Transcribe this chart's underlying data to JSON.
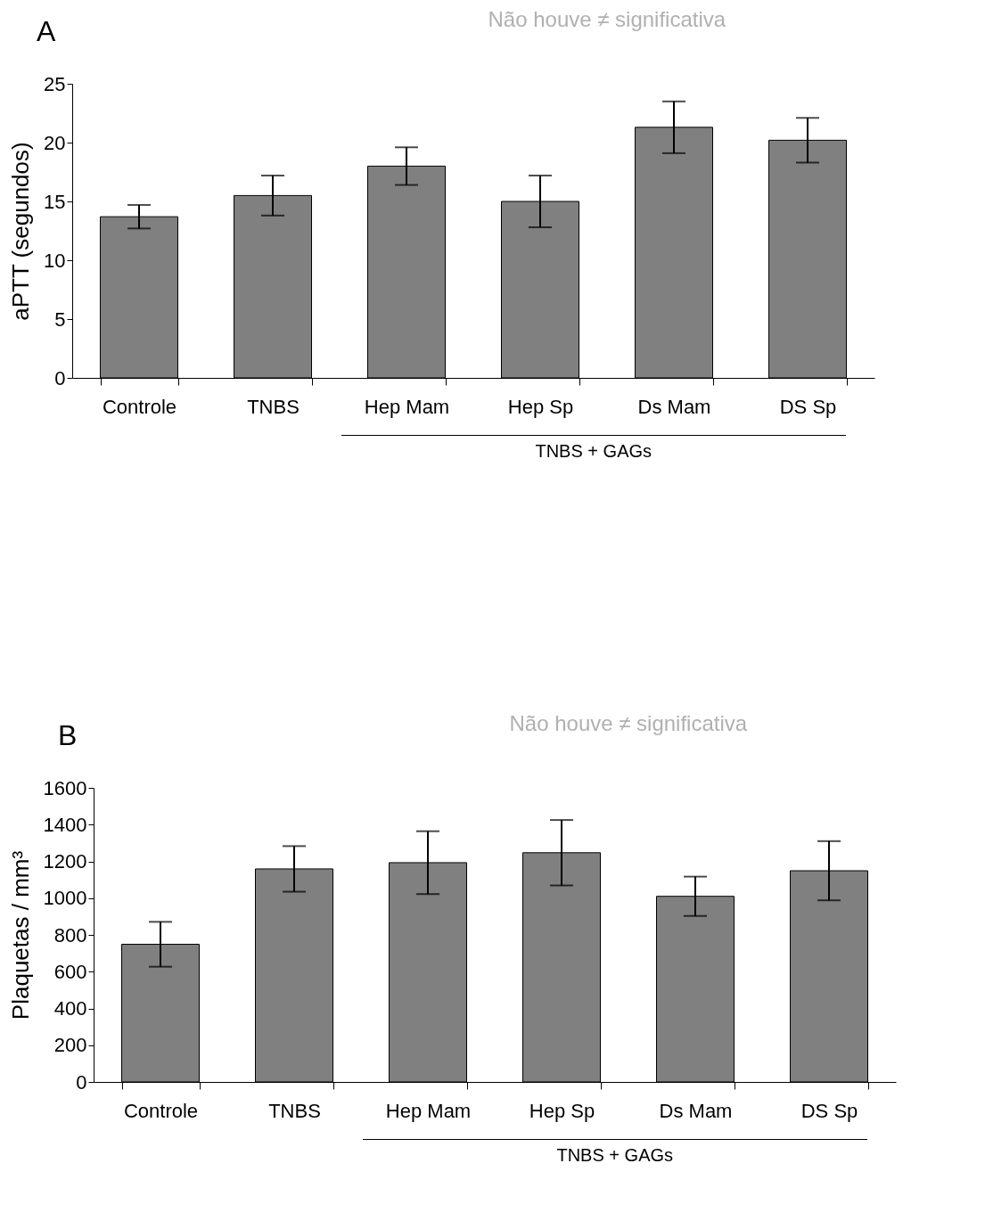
{
  "chart_data": [
    {
      "type": "bar",
      "title": "A",
      "ylabel": "aPTT (segundos)",
      "categories": [
        "Controle",
        "TNBS",
        "Hep Mam",
        "Hep Sp",
        "Ds Mam",
        "DS Sp"
      ],
      "values": [
        13.7,
        15.5,
        18.0,
        15.0,
        21.3,
        20.2
      ],
      "errors": [
        1.0,
        1.7,
        1.6,
        2.2,
        2.2,
        1.9
      ],
      "color": "#808080",
      "ylim": [
        0,
        25
      ],
      "yticks": [
        0,
        5,
        10,
        15,
        20,
        25
      ],
      "annotations": [
        "Não houve ≠ significativa",
        "TNBS + GAGs"
      ]
    },
    {
      "type": "bar",
      "title": "B",
      "ylabel": "Plaquetas / mm³",
      "categories": [
        "Controle",
        "TNBS",
        "Hep Mam",
        "Hep Sp",
        "Ds Mam",
        "DS Sp"
      ],
      "values": [
        749,
        1159,
        1193,
        1247,
        1010,
        1149
      ],
      "errors": [
        122,
        124,
        171,
        178,
        107,
        161
      ],
      "color": "#808080",
      "ylim": [
        0,
        1600
      ],
      "yticks": [
        0,
        200,
        400,
        600,
        800,
        1000,
        1200,
        1400,
        1600
      ],
      "annotations": [
        "Não houve ≠ significativa",
        "TNBS + GAGs"
      ]
    }
  ]
}
